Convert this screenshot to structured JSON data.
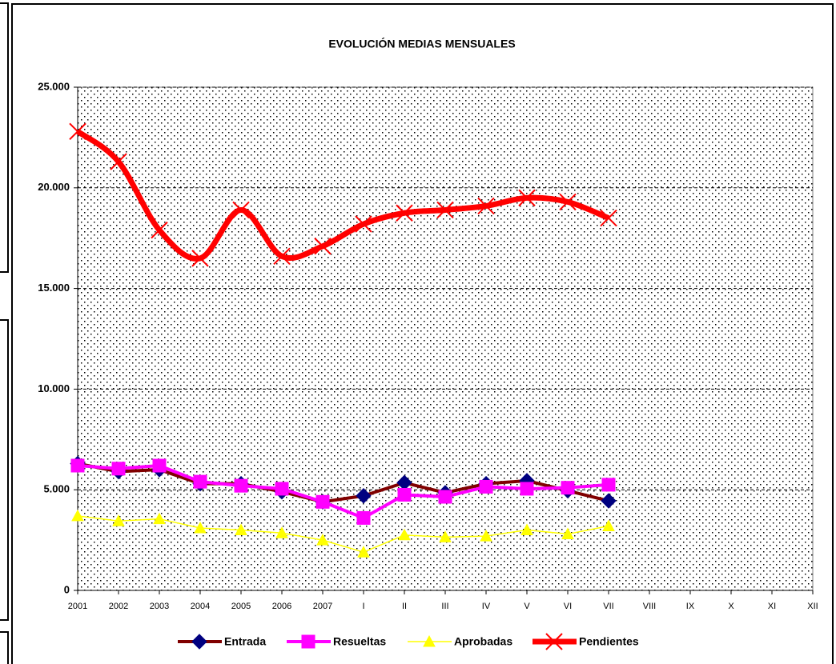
{
  "chart_data": {
    "type": "line",
    "title": "EVOLUCIÓN MEDIAS MENSUALES",
    "categories": [
      "2001",
      "2002",
      "2003",
      "2004",
      "2005",
      "2006",
      "2007",
      "I",
      "II",
      "III",
      "IV",
      "V",
      "VI",
      "VII",
      "VIII",
      "IX",
      "X",
      "XI",
      "XII"
    ],
    "series": [
      {
        "name": "Entrada",
        "color": "#800000",
        "marker": "diamond",
        "marker_color": "#000080",
        "values": [
          6300,
          5900,
          6000,
          5300,
          5300,
          4900,
          4400,
          4700,
          5350,
          4850,
          5300,
          5450,
          4950,
          4450,
          null,
          null,
          null,
          null,
          null
        ]
      },
      {
        "name": "Resueltas",
        "color": "#ff00ff",
        "marker": "square",
        "marker_color": "#ff00ff",
        "values": [
          6200,
          6050,
          6200,
          5400,
          5200,
          5050,
          4400,
          3600,
          4750,
          4650,
          5150,
          5050,
          5100,
          5250,
          null,
          null,
          null,
          null,
          null
        ]
      },
      {
        "name": "Aprobadas",
        "color": "#ffff00",
        "marker": "triangle",
        "marker_color": "#ffff00",
        "values": [
          3700,
          3450,
          3550,
          3100,
          3000,
          2850,
          2500,
          1900,
          2750,
          2650,
          2700,
          3000,
          2800,
          3200,
          null,
          null,
          null,
          null,
          null
        ]
      },
      {
        "name": "Pendientes",
        "color": "#ff0000",
        "marker": "x",
        "marker_color": "#ff0000",
        "smooth": true,
        "values": [
          22800,
          21300,
          17900,
          16500,
          18900,
          16600,
          17100,
          18200,
          18750,
          18900,
          19100,
          19500,
          19300,
          18500,
          null,
          null,
          null,
          null,
          null
        ]
      }
    ],
    "ylim": [
      0,
      25000
    ],
    "yticks": [
      0,
      {
        "value": 5000,
        "label": "5.000"
      },
      {
        "value": 10000,
        "label": "10.000"
      },
      {
        "value": 15000,
        "label": "15.000"
      },
      {
        "value": 20000,
        "label": "20.000"
      },
      {
        "value": 25000,
        "label": "25.000"
      }
    ],
    "grid": true,
    "legend": "bottom"
  }
}
